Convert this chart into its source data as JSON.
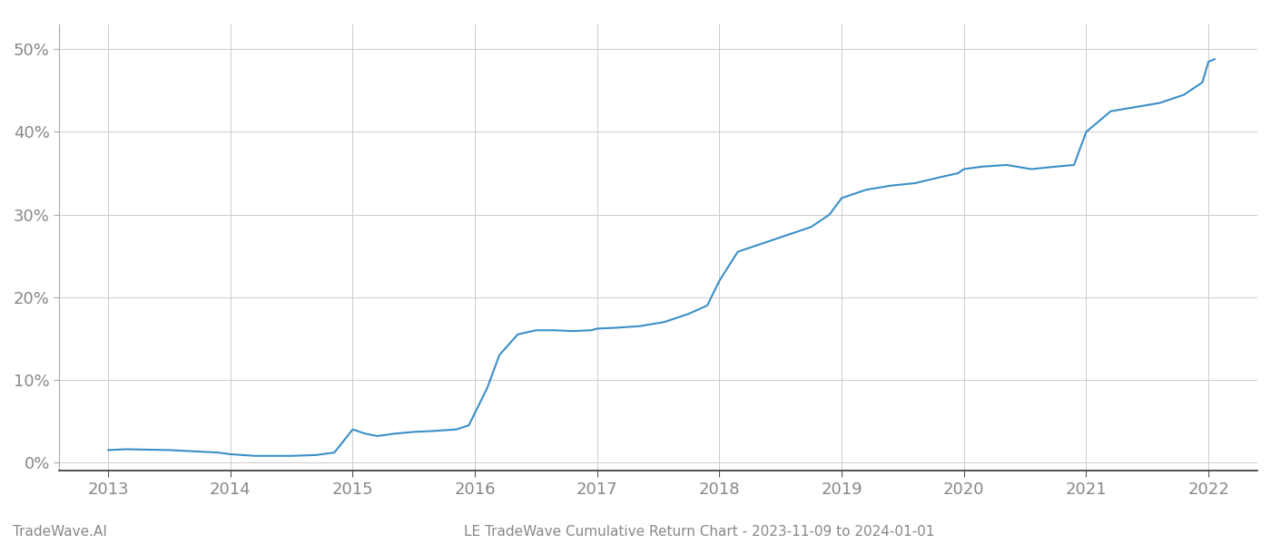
{
  "title": "LE TradeWave Cumulative Return Chart - 2023-11-09 to 2024-01-01",
  "watermark": "TradeWave.AI",
  "line_color": "#3a8fc7",
  "background_color": "#ffffff",
  "grid_color": "#cccccc",
  "x_values": [
    2013.0,
    2013.15,
    2013.5,
    2013.9,
    2014.0,
    2014.2,
    2014.5,
    2014.7,
    2014.85,
    2015.0,
    2015.1,
    2015.2,
    2015.35,
    2015.5,
    2015.65,
    2015.75,
    2015.85,
    2015.95,
    2016.0,
    2016.1,
    2016.2,
    2016.35,
    2016.5,
    2016.65,
    2016.8,
    2016.95,
    2017.0,
    2017.15,
    2017.35,
    2017.55,
    2017.75,
    2017.9,
    2018.0,
    2018.15,
    2018.35,
    2018.55,
    2018.75,
    2018.9,
    2019.0,
    2019.2,
    2019.4,
    2019.6,
    2019.8,
    2019.95,
    2020.0,
    2020.15,
    2020.35,
    2020.55,
    2020.75,
    2020.9,
    2021.0,
    2021.2,
    2021.4,
    2021.6,
    2021.8,
    2021.95,
    2022.0,
    2022.05
  ],
  "y_values": [
    1.5,
    1.6,
    1.5,
    1.2,
    1.0,
    0.8,
    0.8,
    0.9,
    1.2,
    4.0,
    3.5,
    3.2,
    3.5,
    3.7,
    3.8,
    3.9,
    4.0,
    4.5,
    6.0,
    9.0,
    13.0,
    15.5,
    16.0,
    16.0,
    15.9,
    16.0,
    16.2,
    16.3,
    16.5,
    17.0,
    18.0,
    19.0,
    22.0,
    25.5,
    26.5,
    27.5,
    28.5,
    30.0,
    32.0,
    33.0,
    33.5,
    33.8,
    34.5,
    35.0,
    35.5,
    35.8,
    36.0,
    35.5,
    35.8,
    36.0,
    40.0,
    42.5,
    43.0,
    43.5,
    44.5,
    46.0,
    48.5,
    48.8
  ],
  "xlim": [
    2012.6,
    2022.4
  ],
  "ylim": [
    -1,
    53
  ],
  "yticks": [
    0,
    10,
    20,
    30,
    40,
    50
  ],
  "ytick_labels": [
    "0%",
    "10%",
    "20%",
    "30%",
    "40%",
    "50%"
  ],
  "xticks": [
    2013,
    2014,
    2015,
    2016,
    2017,
    2018,
    2019,
    2020,
    2021,
    2022
  ],
  "xtick_labels": [
    "2013",
    "2014",
    "2015",
    "2016",
    "2017",
    "2018",
    "2019",
    "2020",
    "2021",
    "2022"
  ],
  "line_width": 1.5,
  "tick_label_color": "#888888",
  "tick_label_fontsize": 13,
  "title_fontsize": 11,
  "watermark_fontsize": 11
}
